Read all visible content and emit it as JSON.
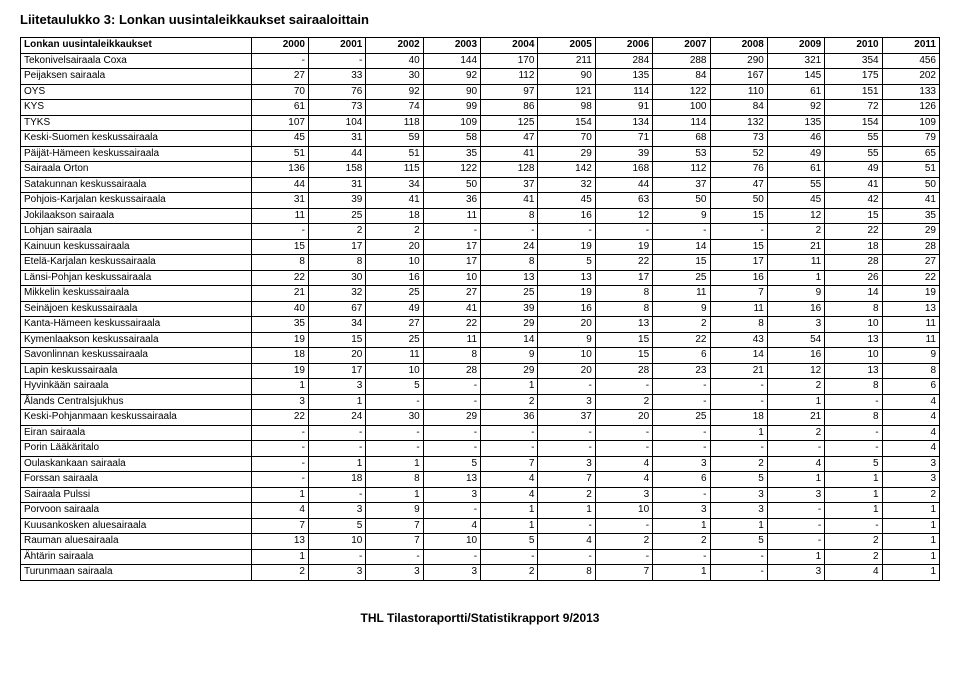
{
  "title": "Liitetaulukko 3: Lonkan uusintaleikkaukset sairaaloittain",
  "header": {
    "first": "Lonkan uusintaleikkaukset",
    "years": [
      "2000",
      "2001",
      "2002",
      "2003",
      "2004",
      "2005",
      "2006",
      "2007",
      "2008",
      "2009",
      "2010",
      "2011"
    ]
  },
  "rows": [
    {
      "label": "Tekonivelsairaala Coxa",
      "cells": [
        "-",
        "-",
        "40",
        "144",
        "170",
        "211",
        "284",
        "288",
        "290",
        "321",
        "354",
        "456"
      ]
    },
    {
      "label": "Peijaksen sairaala",
      "cells": [
        "27",
        "33",
        "30",
        "92",
        "112",
        "90",
        "135",
        "84",
        "167",
        "145",
        "175",
        "202"
      ]
    },
    {
      "label": "OYS",
      "cells": [
        "70",
        "76",
        "92",
        "90",
        "97",
        "121",
        "114",
        "122",
        "110",
        "61",
        "151",
        "133"
      ]
    },
    {
      "label": "KYS",
      "cells": [
        "61",
        "73",
        "74",
        "99",
        "86",
        "98",
        "91",
        "100",
        "84",
        "92",
        "72",
        "126"
      ]
    },
    {
      "label": "TYKS",
      "cells": [
        "107",
        "104",
        "118",
        "109",
        "125",
        "154",
        "134",
        "114",
        "132",
        "135",
        "154",
        "109"
      ]
    },
    {
      "label": "Keski-Suomen keskussairaala",
      "cells": [
        "45",
        "31",
        "59",
        "58",
        "47",
        "70",
        "71",
        "68",
        "73",
        "46",
        "55",
        "79"
      ]
    },
    {
      "label": "Päijät-Hämeen keskussairaala",
      "cells": [
        "51",
        "44",
        "51",
        "35",
        "41",
        "29",
        "39",
        "53",
        "52",
        "49",
        "55",
        "65"
      ]
    },
    {
      "label": "Sairaala Orton",
      "cells": [
        "136",
        "158",
        "115",
        "122",
        "128",
        "142",
        "168",
        "112",
        "76",
        "61",
        "49",
        "51"
      ]
    },
    {
      "label": "Satakunnan keskussairaala",
      "cells": [
        "44",
        "31",
        "34",
        "50",
        "37",
        "32",
        "44",
        "37",
        "47",
        "55",
        "41",
        "50"
      ]
    },
    {
      "label": "Pohjois-Karjalan keskussairaala",
      "cells": [
        "31",
        "39",
        "41",
        "36",
        "41",
        "45",
        "63",
        "50",
        "50",
        "45",
        "42",
        "41"
      ]
    },
    {
      "label": "Jokilaakson sairaala",
      "cells": [
        "11",
        "25",
        "18",
        "11",
        "8",
        "16",
        "12",
        "9",
        "15",
        "12",
        "15",
        "35"
      ]
    },
    {
      "label": "Lohjan sairaala",
      "cells": [
        "-",
        "2",
        "2",
        "-",
        "-",
        "-",
        "-",
        "-",
        "-",
        "2",
        "22",
        "29"
      ]
    },
    {
      "label": "Kainuun keskussairaala",
      "cells": [
        "15",
        "17",
        "20",
        "17",
        "24",
        "19",
        "19",
        "14",
        "15",
        "21",
        "18",
        "28"
      ]
    },
    {
      "label": "Etelä-Karjalan keskussairaala",
      "cells": [
        "8",
        "8",
        "10",
        "17",
        "8",
        "5",
        "22",
        "15",
        "17",
        "11",
        "28",
        "27"
      ]
    },
    {
      "label": "Länsi-Pohjan keskussairaala",
      "cells": [
        "22",
        "30",
        "16",
        "10",
        "13",
        "13",
        "17",
        "25",
        "16",
        "1",
        "26",
        "22"
      ]
    },
    {
      "label": "Mikkelin keskussairaala",
      "cells": [
        "21",
        "32",
        "25",
        "27",
        "25",
        "19",
        "8",
        "11",
        "7",
        "9",
        "14",
        "19"
      ]
    },
    {
      "label": "Seinäjoen keskussairaala",
      "cells": [
        "40",
        "67",
        "49",
        "41",
        "39",
        "16",
        "8",
        "9",
        "11",
        "16",
        "8",
        "13"
      ]
    },
    {
      "label": "Kanta-Hämeen keskussairaala",
      "cells": [
        "35",
        "34",
        "27",
        "22",
        "29",
        "20",
        "13",
        "2",
        "8",
        "3",
        "10",
        "11"
      ]
    },
    {
      "label": "Kymenlaakson keskussairaala",
      "cells": [
        "19",
        "15",
        "25",
        "11",
        "14",
        "9",
        "15",
        "22",
        "43",
        "54",
        "13",
        "11"
      ]
    },
    {
      "label": "Savonlinnan keskussairaala",
      "cells": [
        "18",
        "20",
        "11",
        "8",
        "9",
        "10",
        "15",
        "6",
        "14",
        "16",
        "10",
        "9"
      ]
    },
    {
      "label": "Lapin keskussairaala",
      "cells": [
        "19",
        "17",
        "10",
        "28",
        "29",
        "20",
        "28",
        "23",
        "21",
        "12",
        "13",
        "8"
      ]
    },
    {
      "label": "Hyvinkään sairaala",
      "cells": [
        "1",
        "3",
        "5",
        "-",
        "1",
        "-",
        "-",
        "-",
        "-",
        "2",
        "8",
        "6"
      ]
    },
    {
      "label": "Ålands Centralsjukhus",
      "cells": [
        "3",
        "1",
        "-",
        "-",
        "2",
        "3",
        "2",
        "-",
        "-",
        "1",
        "-",
        "4"
      ]
    },
    {
      "label": "Keski-Pohjanmaan keskussairaala",
      "cells": [
        "22",
        "24",
        "30",
        "29",
        "36",
        "37",
        "20",
        "25",
        "18",
        "21",
        "8",
        "4"
      ]
    },
    {
      "label": "Eiran sairaala",
      "cells": [
        "-",
        "-",
        "-",
        "-",
        "-",
        "-",
        "-",
        "-",
        "1",
        "2",
        "-",
        "4"
      ]
    },
    {
      "label": "Porin Lääkäritalo",
      "cells": [
        "-",
        "-",
        "-",
        "-",
        "-",
        "-",
        "-",
        "-",
        "-",
        "-",
        "-",
        "4"
      ]
    },
    {
      "label": "Oulaskankaan sairaala",
      "cells": [
        "-",
        "1",
        "1",
        "5",
        "7",
        "3",
        "4",
        "3",
        "2",
        "4",
        "5",
        "3"
      ]
    },
    {
      "label": "Forssan sairaala",
      "cells": [
        "-",
        "18",
        "8",
        "13",
        "4",
        "7",
        "4",
        "6",
        "5",
        "1",
        "1",
        "3"
      ]
    },
    {
      "label": "Sairaala Pulssi",
      "cells": [
        "1",
        "-",
        "1",
        "3",
        "4",
        "2",
        "3",
        "-",
        "3",
        "3",
        "1",
        "2"
      ]
    },
    {
      "label": "Porvoon sairaala",
      "cells": [
        "4",
        "3",
        "9",
        "-",
        "1",
        "1",
        "10",
        "3",
        "3",
        "-",
        "1",
        "1"
      ]
    },
    {
      "label": "Kuusankosken aluesairaala",
      "cells": [
        "7",
        "5",
        "7",
        "4",
        "1",
        "-",
        "-",
        "1",
        "1",
        "-",
        "-",
        "1"
      ]
    },
    {
      "label": "Rauman aluesairaala",
      "cells": [
        "13",
        "10",
        "7",
        "10",
        "5",
        "4",
        "2",
        "2",
        "5",
        "-",
        "2",
        "1"
      ]
    },
    {
      "label": "Ähtärin sairaala",
      "cells": [
        "1",
        "-",
        "-",
        "-",
        "-",
        "-",
        "-",
        "-",
        "-",
        "1",
        "2",
        "1"
      ]
    },
    {
      "label": "Turunmaan sairaala",
      "cells": [
        "2",
        "3",
        "3",
        "3",
        "2",
        "8",
        "7",
        "1",
        "-",
        "3",
        "4",
        "1"
      ]
    }
  ],
  "footer": "THL Tilastoraportti/Statistikrapport 9/2013"
}
